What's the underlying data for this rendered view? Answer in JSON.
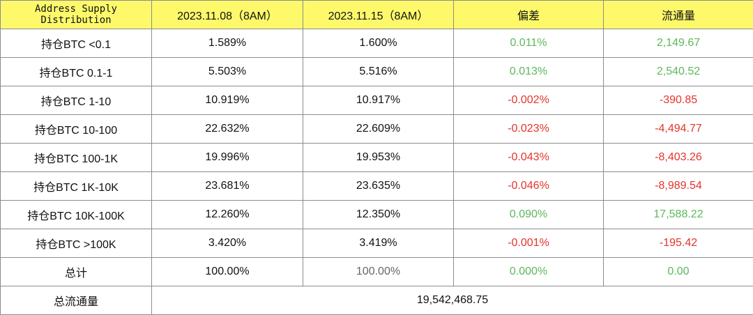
{
  "colors": {
    "header_bg": "#fdf96b",
    "positive": "#5cb85c",
    "negative": "#e5342b",
    "border": "#8c8c8c"
  },
  "header": {
    "col0_line1": "Address Supply",
    "col0_line2": "Distribution",
    "col1": "2023.11.08（8AM）",
    "col2": "2023.11.15（8AM）",
    "col3": "偏差",
    "col4": "流通量"
  },
  "rows": [
    {
      "label": "持仓BTC <0.1",
      "d1": "1.589%",
      "d2": "1.600%",
      "dev": "0.011%",
      "flow": "2,149.67",
      "sign": "pos"
    },
    {
      "label": "持仓BTC 0.1-1",
      "d1": "5.503%",
      "d2": "5.516%",
      "dev": "0.013%",
      "flow": "2,540.52",
      "sign": "pos"
    },
    {
      "label": "持仓BTC 1-10",
      "d1": "10.919%",
      "d2": "10.917%",
      "dev": "-0.002%",
      "flow": "-390.85",
      "sign": "neg"
    },
    {
      "label": "持仓BTC 10-100",
      "d1": "22.632%",
      "d2": "22.609%",
      "dev": "-0.023%",
      "flow": "-4,494.77",
      "sign": "neg"
    },
    {
      "label": "持仓BTC 100-1K",
      "d1": "19.996%",
      "d2": "19.953%",
      "dev": "-0.043%",
      "flow": "-8,403.26",
      "sign": "neg"
    },
    {
      "label": "持仓BTC 1K-10K",
      "d1": "23.681%",
      "d2": "23.635%",
      "dev": "-0.046%",
      "flow": "-8,989.54",
      "sign": "neg"
    },
    {
      "label": "持仓BTC 10K-100K",
      "d1": "12.260%",
      "d2": "12.350%",
      "dev": "0.090%",
      "flow": "17,588.22",
      "sign": "pos"
    },
    {
      "label": "持仓BTC >100K",
      "d1": "3.420%",
      "d2": "3.419%",
      "dev": "-0.001%",
      "flow": "-195.42",
      "sign": "neg"
    }
  ],
  "total": {
    "label": "总计",
    "d1": "100.00%",
    "d2": "100.00%",
    "dev": "0.000%",
    "flow": "0.00"
  },
  "total_flow": {
    "label": "总流通量",
    "value": "19,542,468.75"
  }
}
